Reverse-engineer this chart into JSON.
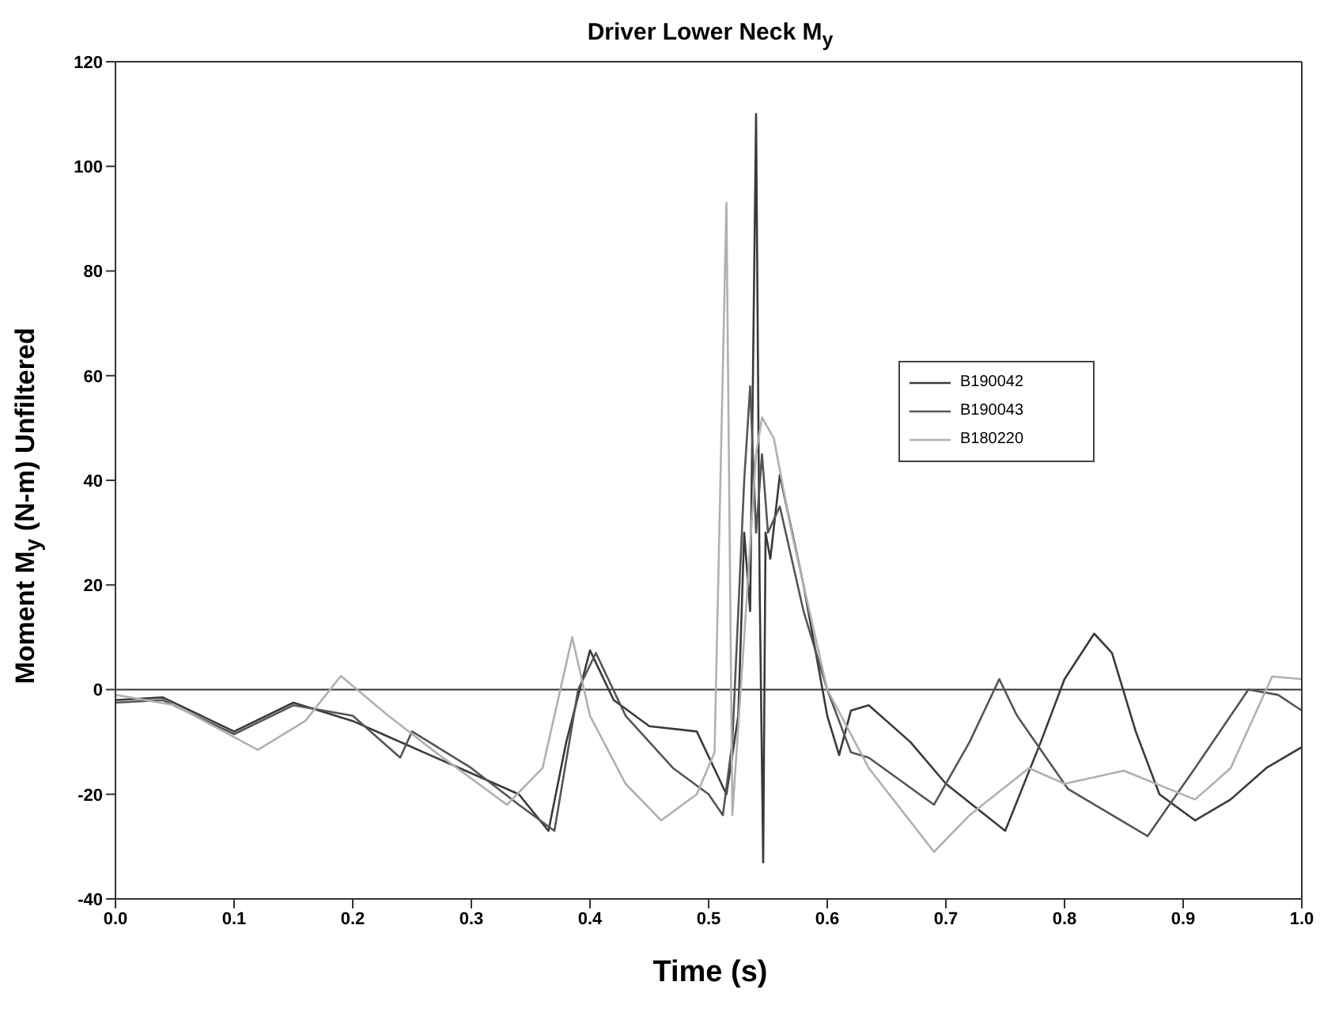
{
  "chart_data": {
    "type": "line",
    "title": "Driver Lower Neck M$_{y}$",
    "xlabel": "Time (s)",
    "ylabel": "Moment M$_{y}$ (N-m) Unfiltered",
    "xlim": [
      0,
      1
    ],
    "xticks": [
      {
        "value": 0,
        "label": "0.0"
      },
      0.1,
      0.2,
      0.3,
      0.4,
      0.5,
      0.6,
      0.7,
      0.8,
      0.9,
      {
        "value": 1,
        "label": "1.0"
      }
    ],
    "ylim": [
      -40,
      120
    ],
    "yticks": [
      -40,
      -20,
      0,
      20,
      40,
      60,
      80,
      100,
      120
    ],
    "legend": "right",
    "marker": "none",
    "line_style": "solid",
    "ref_lines": [
      {
        "axis": "y",
        "value": 0,
        "color": "#333333"
      }
    ],
    "series": [
      {
        "name": "B190042",
        "color": "#3a3a3a",
        "x": [
          0,
          0.04,
          0.1,
          0.15,
          0.2,
          0.23,
          0.26,
          0.3,
          0.34,
          0.365,
          0.38,
          0.4,
          0.42,
          0.45,
          0.49,
          0.515,
          0.525,
          0.53,
          0.535,
          0.54,
          0.543,
          0.546,
          0.548,
          0.552,
          0.56,
          0.58,
          0.6,
          0.61,
          0.62,
          0.635,
          0.67,
          0.7,
          0.75,
          0.78,
          0.8,
          0.825,
          0.84,
          0.86,
          0.88,
          0.91,
          0.94,
          0.97,
          1.0
        ],
        "values": [
          -2,
          -1.5,
          -8,
          -2.5,
          -6,
          -9,
          -12,
          -16,
          -20,
          -27,
          -10,
          7.5,
          -2,
          -7,
          -8,
          -20,
          -5,
          30,
          15,
          110,
          20,
          -33,
          30,
          25,
          41,
          20,
          -5,
          -12.5,
          -4,
          -3,
          -10,
          -18,
          -27,
          -10,
          2,
          10.7,
          7,
          -8,
          -20,
          -25,
          -21,
          -15,
          -11
        ]
      },
      {
        "name": "B190043",
        "color": "#555555",
        "x": [
          0,
          0.04,
          0.1,
          0.15,
          0.2,
          0.24,
          0.25,
          0.3,
          0.34,
          0.37,
          0.39,
          0.405,
          0.43,
          0.47,
          0.5,
          0.512,
          0.52,
          0.53,
          0.535,
          0.54,
          0.545,
          0.55,
          0.56,
          0.58,
          0.6,
          0.62,
          0.635,
          0.69,
          0.72,
          0.745,
          0.76,
          0.803,
          0.87,
          0.91,
          0.955,
          0.98,
          1.0
        ],
        "values": [
          -2.5,
          -2,
          -8.5,
          -3,
          -5,
          -13,
          -8,
          -15,
          -22,
          -27,
          0,
          7,
          -5,
          -15,
          -20,
          -24,
          -10,
          40,
          58,
          30,
          45,
          30,
          35,
          15,
          0,
          -12,
          -13,
          -22,
          -10,
          2,
          -5,
          -19,
          -28,
          -15,
          0,
          -1,
          -4
        ]
      },
      {
        "name": "B180220",
        "color": "#b0b0b0",
        "x": [
          0,
          0.05,
          0.12,
          0.16,
          0.19,
          0.23,
          0.27,
          0.33,
          0.36,
          0.385,
          0.4,
          0.43,
          0.46,
          0.49,
          0.505,
          0.515,
          0.52,
          0.53,
          0.54,
          0.545,
          0.555,
          0.57,
          0.6,
          0.635,
          0.69,
          0.72,
          0.77,
          0.8,
          0.85,
          0.91,
          0.94,
          0.975,
          1.0
        ],
        "values": [
          -1,
          -3,
          -11.5,
          -6,
          2.6,
          -5,
          -12,
          -22,
          -15,
          10,
          -5,
          -18,
          -25,
          -20,
          -12,
          93,
          -24,
          10,
          45,
          52,
          48,
          30,
          0,
          -15,
          -31,
          -24,
          -15,
          -18,
          -15.5,
          -21,
          -15,
          2.5,
          2
        ]
      }
    ]
  }
}
